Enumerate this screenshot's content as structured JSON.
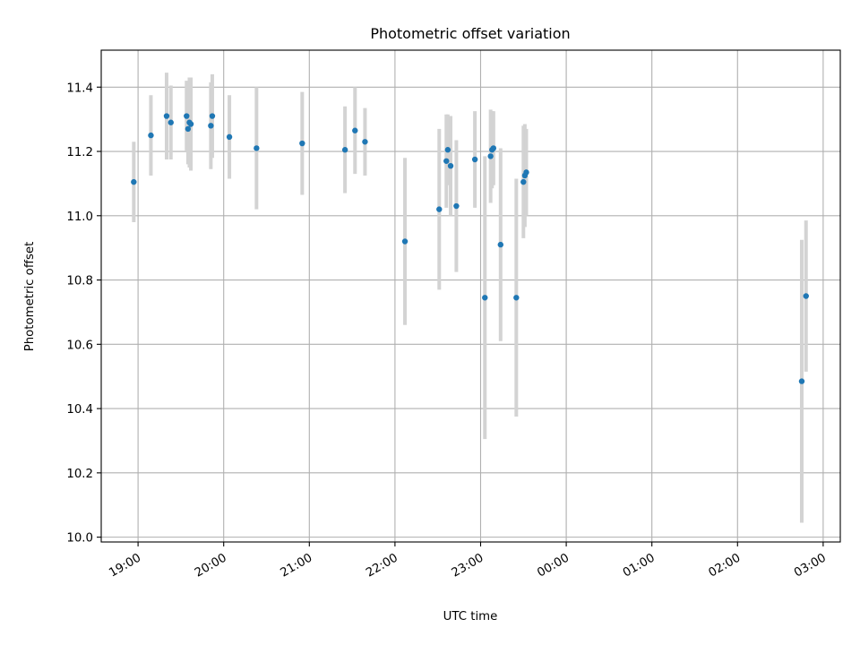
{
  "chart_data": {
    "type": "scatter",
    "title": "Photometric offset variation",
    "xlabel": "UTC time",
    "ylabel": "Photometric offset",
    "x_tick_labels": [
      "19:00",
      "20:00",
      "21:00",
      "22:00",
      "23:00",
      "00:00",
      "01:00",
      "02:00",
      "03:00"
    ],
    "y_tick_labels": [
      "10.0",
      "10.2",
      "10.4",
      "10.6",
      "10.8",
      "11.0",
      "11.2",
      "11.4"
    ],
    "x_ticks_hours": [
      19,
      20,
      21,
      22,
      23,
      24,
      25,
      26,
      27
    ],
    "y_ticks": [
      10.0,
      10.2,
      10.4,
      10.6,
      10.8,
      11.0,
      11.2,
      11.4
    ],
    "xlim_hours": [
      18.57,
      27.2
    ],
    "ylim": [
      9.985,
      11.515
    ],
    "grid": true,
    "colors": {
      "point": "#1f77b4",
      "errorbar": "#d3d3d3",
      "grid": "#b0b0b0"
    },
    "points": [
      {
        "t": "18:57",
        "y": 11.105,
        "err": 0.125
      },
      {
        "t": "19:09",
        "y": 11.25,
        "err": 0.125
      },
      {
        "t": "19:20",
        "y": 11.31,
        "err": 0.135
      },
      {
        "t": "19:23",
        "y": 11.29,
        "err": 0.115
      },
      {
        "t": "19:34",
        "y": 11.31,
        "err": 0.11
      },
      {
        "t": "19:35",
        "y": 11.27,
        "err": 0.11
      },
      {
        "t": "19:36",
        "y": 11.29,
        "err": 0.14
      },
      {
        "t": "19:37",
        "y": 11.285,
        "err": 0.145
      },
      {
        "t": "19:51",
        "y": 11.28,
        "err": 0.135
      },
      {
        "t": "19:52",
        "y": 11.31,
        "err": 0.13
      },
      {
        "t": "20:04",
        "y": 11.245,
        "err": 0.13
      },
      {
        "t": "20:23",
        "y": 11.21,
        "err": 0.19
      },
      {
        "t": "20:55",
        "y": 11.225,
        "err": 0.16
      },
      {
        "t": "21:25",
        "y": 11.205,
        "err": 0.135
      },
      {
        "t": "21:32",
        "y": 11.265,
        "err": 0.135
      },
      {
        "t": "21:39",
        "y": 11.23,
        "err": 0.105
      },
      {
        "t": "22:07",
        "y": 10.92,
        "err": 0.26
      },
      {
        "t": "22:31",
        "y": 11.02,
        "err": 0.25
      },
      {
        "t": "22:36",
        "y": 11.17,
        "err": 0.145
      },
      {
        "t": "22:37",
        "y": 11.205,
        "err": 0.11
      },
      {
        "t": "22:39",
        "y": 11.155,
        "err": 0.155
      },
      {
        "t": "22:43",
        "y": 11.03,
        "err": 0.205
      },
      {
        "t": "22:56",
        "y": 11.175,
        "err": 0.15
      },
      {
        "t": "23:03",
        "y": 10.745,
        "err": 0.44
      },
      {
        "t": "23:07",
        "y": 11.185,
        "err": 0.145
      },
      {
        "t": "23:08",
        "y": 11.205,
        "err": 0.12
      },
      {
        "t": "23:09",
        "y": 11.21,
        "err": 0.115
      },
      {
        "t": "23:14",
        "y": 10.91,
        "err": 0.3
      },
      {
        "t": "23:25",
        "y": 10.745,
        "err": 0.37
      },
      {
        "t": "23:30",
        "y": 11.105,
        "err": 0.175
      },
      {
        "t": "23:31",
        "y": 11.125,
        "err": 0.16
      },
      {
        "t": "23:32",
        "y": 11.135,
        "err": 0.135
      },
      {
        "t": "02:45",
        "y": 10.485,
        "err": 0.44
      },
      {
        "t": "02:48",
        "y": 10.75,
        "err": 0.235
      }
    ]
  }
}
